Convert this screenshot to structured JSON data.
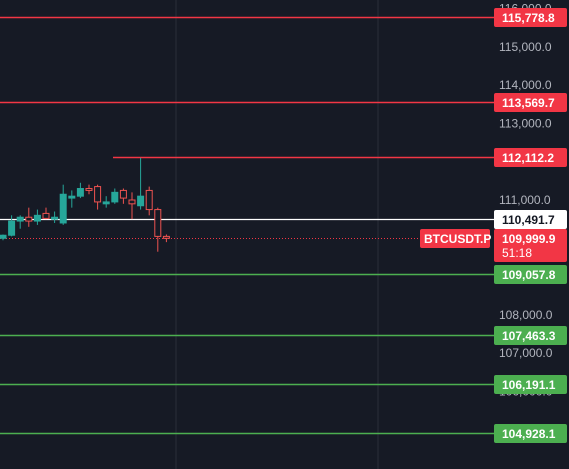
{
  "chart_data": {
    "type": "candlestick",
    "symbol": "BTCUSDT.P",
    "last_price": "109,999.9",
    "countdown": "51:18",
    "y_range": [
      104400,
      116000
    ],
    "price_scale_ticks": [
      {
        "value": 116000,
        "label": "116,000.0"
      },
      {
        "value": 115000,
        "label": "115,000.0"
      },
      {
        "value": 114000,
        "label": "114,000.0"
      },
      {
        "value": 113000,
        "label": "113,000.0"
      },
      {
        "value": 111000,
        "label": "111,000.0"
      },
      {
        "value": 108000,
        "label": "108,000.0"
      },
      {
        "value": 107000,
        "label": "107,000.0"
      },
      {
        "value": 106000,
        "label": "106,000.0"
      }
    ],
    "levels": [
      {
        "value": 115778.8,
        "label": "115,778.8",
        "kind": "resistance",
        "color": "#f23645"
      },
      {
        "value": 113569.7,
        "label": "113,569.7",
        "kind": "resistance",
        "color": "#f23645"
      },
      {
        "value": 112112.2,
        "label": "112,112.2",
        "kind": "resistance-short",
        "color": "#f23645"
      },
      {
        "value": 110491.7,
        "label": "110,491.7",
        "kind": "reference",
        "color": "#ffffff"
      },
      {
        "value": 109057.8,
        "label": "109,057.8",
        "kind": "support",
        "color": "#4caf50"
      },
      {
        "value": 107463.3,
        "label": "107,463.3",
        "kind": "support",
        "color": "#4caf50"
      },
      {
        "value": 106191.1,
        "label": "106,191.1",
        "kind": "support",
        "color": "#4caf50"
      },
      {
        "value": 104928.1,
        "label": "104,928.1",
        "kind": "support",
        "color": "#4caf50"
      }
    ],
    "candles": [
      {
        "o": 110000,
        "h": 110100,
        "l": 109950,
        "c": 110080
      },
      {
        "o": 110080,
        "h": 110600,
        "l": 110050,
        "c": 110450
      },
      {
        "o": 110450,
        "h": 110600,
        "l": 110250,
        "c": 110550
      },
      {
        "o": 110550,
        "h": 110800,
        "l": 110300,
        "c": 110450
      },
      {
        "o": 110450,
        "h": 110750,
        "l": 110350,
        "c": 110600
      },
      {
        "o": 110650,
        "h": 110800,
        "l": 110500,
        "c": 110520
      },
      {
        "o": 110500,
        "h": 110700,
        "l": 110400,
        "c": 110550
      },
      {
        "o": 110400,
        "h": 111400,
        "l": 110350,
        "c": 111150
      },
      {
        "o": 111050,
        "h": 111250,
        "l": 110800,
        "c": 111100
      },
      {
        "o": 111100,
        "h": 111450,
        "l": 111050,
        "c": 111300
      },
      {
        "o": 111300,
        "h": 111400,
        "l": 111150,
        "c": 111250
      },
      {
        "o": 111350,
        "h": 111400,
        "l": 110750,
        "c": 110950
      },
      {
        "o": 110900,
        "h": 111100,
        "l": 110800,
        "c": 110950
      },
      {
        "o": 110950,
        "h": 111300,
        "l": 110900,
        "c": 111200
      },
      {
        "o": 111250,
        "h": 111300,
        "l": 110900,
        "c": 111050
      },
      {
        "o": 111000,
        "h": 111200,
        "l": 110500,
        "c": 110900
      },
      {
        "o": 110850,
        "h": 112100,
        "l": 110750,
        "c": 111100
      },
      {
        "o": 111250,
        "h": 111350,
        "l": 110600,
        "c": 110750
      },
      {
        "o": 110750,
        "h": 110800,
        "l": 109650,
        "c": 110050
      },
      {
        "o": 110050,
        "h": 110100,
        "l": 109900,
        "c": 110000
      }
    ]
  }
}
